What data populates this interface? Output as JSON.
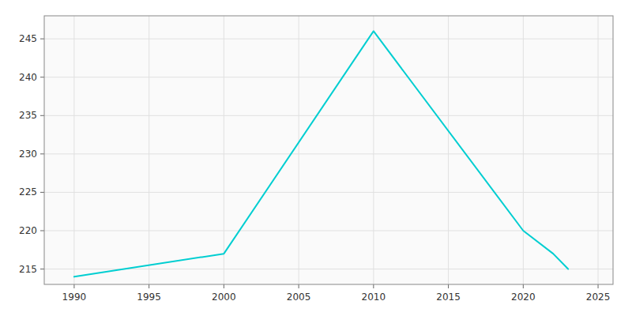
{
  "chart_data": {
    "type": "line",
    "x": [
      1990,
      2000,
      2010,
      2020,
      2022,
      2023
    ],
    "values": [
      214,
      217,
      246,
      220,
      217,
      215
    ],
    "color": "#00CED1",
    "xlim": [
      1988,
      2026
    ],
    "ylim": [
      213,
      248
    ],
    "xticks": [
      1990,
      1995,
      2000,
      2005,
      2010,
      2015,
      2020,
      2025
    ],
    "yticks": [
      215,
      220,
      225,
      230,
      235,
      240,
      245
    ],
    "grid": true
  }
}
